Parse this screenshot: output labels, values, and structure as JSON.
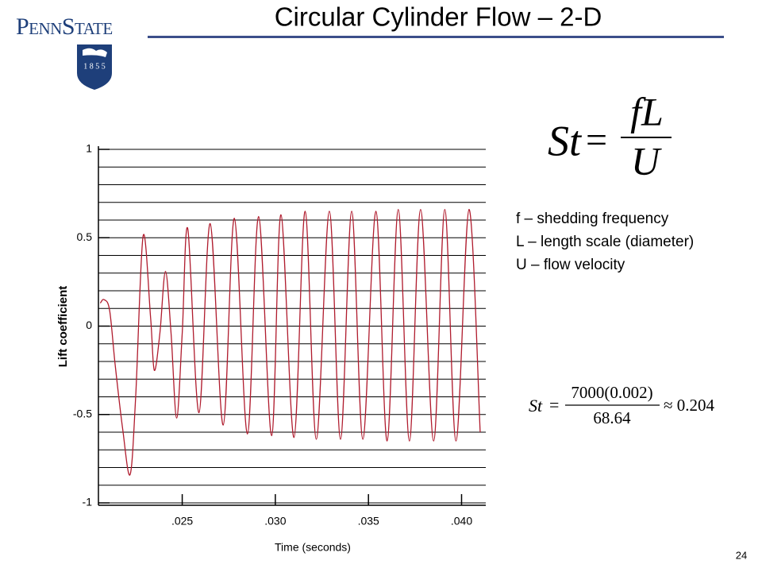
{
  "header": {
    "logo_text": "PennState",
    "logo_year": "1 8 5 5",
    "title": "Circular Cylinder Flow – 2-D"
  },
  "formula": {
    "lhs": "St",
    "equals": "=",
    "numerator": "fL",
    "denominator": "U"
  },
  "notes": [
    "f – shedding frequency",
    "L – length scale (diameter)",
    "U – flow velocity"
  ],
  "example": {
    "lhs": "St",
    "equals": "=",
    "numerator": "7000(0.002)",
    "denominator": "68.64",
    "result": "≈ 0.204"
  },
  "page_number": "24",
  "chart_data": {
    "type": "line",
    "x_label": "Time (seconds)",
    "y_label": "Lift coefficient",
    "color": "#b01c2e",
    "x": [
      0.0206,
      0.0208,
      0.0211,
      0.0214,
      0.0218,
      0.0222,
      0.0225,
      0.0229,
      0.0233,
      0.0235,
      0.0238,
      0.0241,
      0.0244,
      0.0247,
      0.025,
      0.0253,
      0.0259,
      0.0265,
      0.0272,
      0.0278,
      0.0285,
      0.0291,
      0.0298,
      0.0303,
      0.031,
      0.0316,
      0.0322,
      0.0329,
      0.0335,
      0.0341,
      0.0347,
      0.0354,
      0.036,
      0.0366,
      0.0372,
      0.0378,
      0.0385,
      0.0391,
      0.0397,
      0.0404,
      0.041
    ],
    "values": [
      0.13,
      0.15,
      0.09,
      -0.22,
      -0.58,
      -0.84,
      -0.4,
      0.51,
      0.05,
      -0.25,
      -0.04,
      0.31,
      -0.04,
      -0.52,
      -0.04,
      0.55,
      -0.49,
      0.58,
      -0.56,
      0.61,
      -0.61,
      0.62,
      -0.62,
      0.63,
      -0.63,
      0.65,
      -0.64,
      0.65,
      -0.64,
      0.65,
      -0.64,
      0.65,
      -0.65,
      0.66,
      -0.65,
      0.66,
      -0.65,
      0.66,
      -0.65,
      0.66,
      -0.6
    ],
    "xlim": [
      0.0205,
      0.0413
    ],
    "ylim": [
      -1,
      1
    ],
    "xticks": [
      {
        "value": 0.025,
        "label": ".025"
      },
      {
        "value": 0.03,
        "label": ".030"
      },
      {
        "value": 0.035,
        "label": ".035"
      },
      {
        "value": 0.04,
        "label": ".040"
      }
    ],
    "yticks": [
      1,
      0.5,
      0,
      -0.5,
      -1
    ],
    "ygrid": [
      1,
      0.9,
      0.8,
      0.7,
      0.6,
      0.5,
      0.4,
      0.3,
      0.2,
      0.1,
      0,
      -0.1,
      -0.2,
      -0.3,
      -0.4,
      -0.5,
      -0.6,
      -0.7,
      -0.8,
      -0.9,
      -1
    ]
  }
}
